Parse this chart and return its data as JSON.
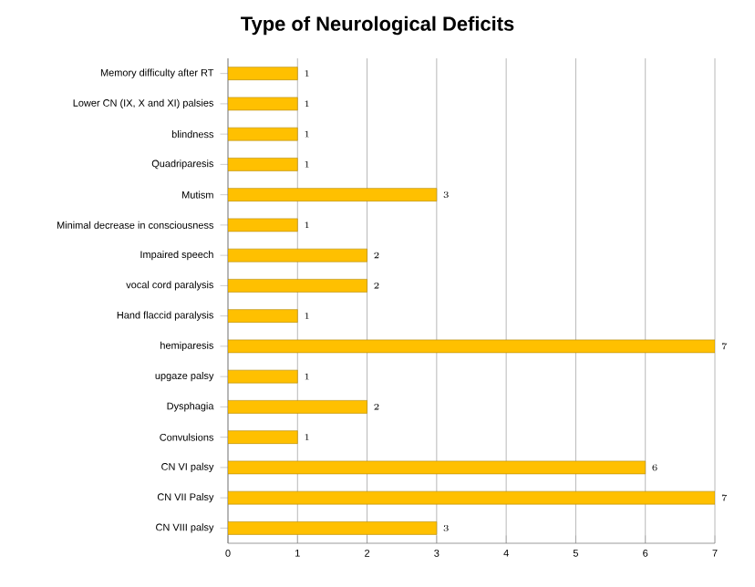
{
  "chart_data": {
    "type": "bar",
    "orientation": "horizontal",
    "title": "Type of Neurological Deficits",
    "categories": [
      "Memory difficulty after RT",
      "Lower CN (IX, X and XI) palsies",
      "blindness",
      "Quadriparesis",
      "Mutism",
      "Minimal decrease in consciousness",
      "Impaired speech",
      "vocal cord paralysis",
      "Hand flaccid paralysis",
      "hemiparesis",
      "upgaze palsy",
      "Dysphagia",
      "Convulsions",
      "CN VI palsy",
      "CN VII Palsy",
      "CN VIII palsy"
    ],
    "values": [
      1,
      1,
      1,
      1,
      3,
      1,
      2,
      2,
      1,
      7,
      1,
      2,
      1,
      6,
      7,
      3
    ],
    "color": "#ffc000",
    "xlim": [
      0,
      7
    ],
    "xticks": [
      0,
      1,
      2,
      3,
      4,
      5,
      6,
      7
    ],
    "grid": "x",
    "data_labels": true
  }
}
